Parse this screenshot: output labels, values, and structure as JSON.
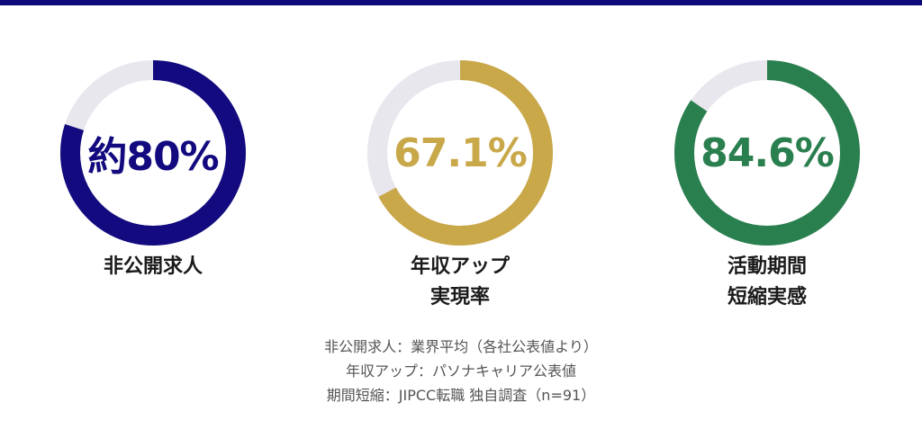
{
  "colors": {
    "top_bar": "#0d0a7a",
    "track": "#e8e7ee",
    "navy": "#120a7e",
    "gold": "#c9a84a",
    "green": "#2a7f4f"
  },
  "chart_data": [
    {
      "type": "pie",
      "center_label": "約80%",
      "value": 80,
      "max": 100,
      "color": "#120a7e",
      "label_lines": [
        "非公開求人"
      ]
    },
    {
      "type": "pie",
      "center_label": "67.1%",
      "value": 67.1,
      "max": 100,
      "color": "#c9a84a",
      "label_lines": [
        "年収アップ",
        "実現率"
      ]
    },
    {
      "type": "pie",
      "center_label": "84.6%",
      "value": 84.6,
      "max": 100,
      "color": "#2a7f4f",
      "label_lines": [
        "活動期間",
        "短縮実感"
      ]
    }
  ],
  "footnotes": [
    "非公開求人：業界平均（各社公表値より）",
    "年収アップ：パソナキャリア公表値",
    "期間短縮：JIPCC転職 独自調査（n=91）"
  ]
}
